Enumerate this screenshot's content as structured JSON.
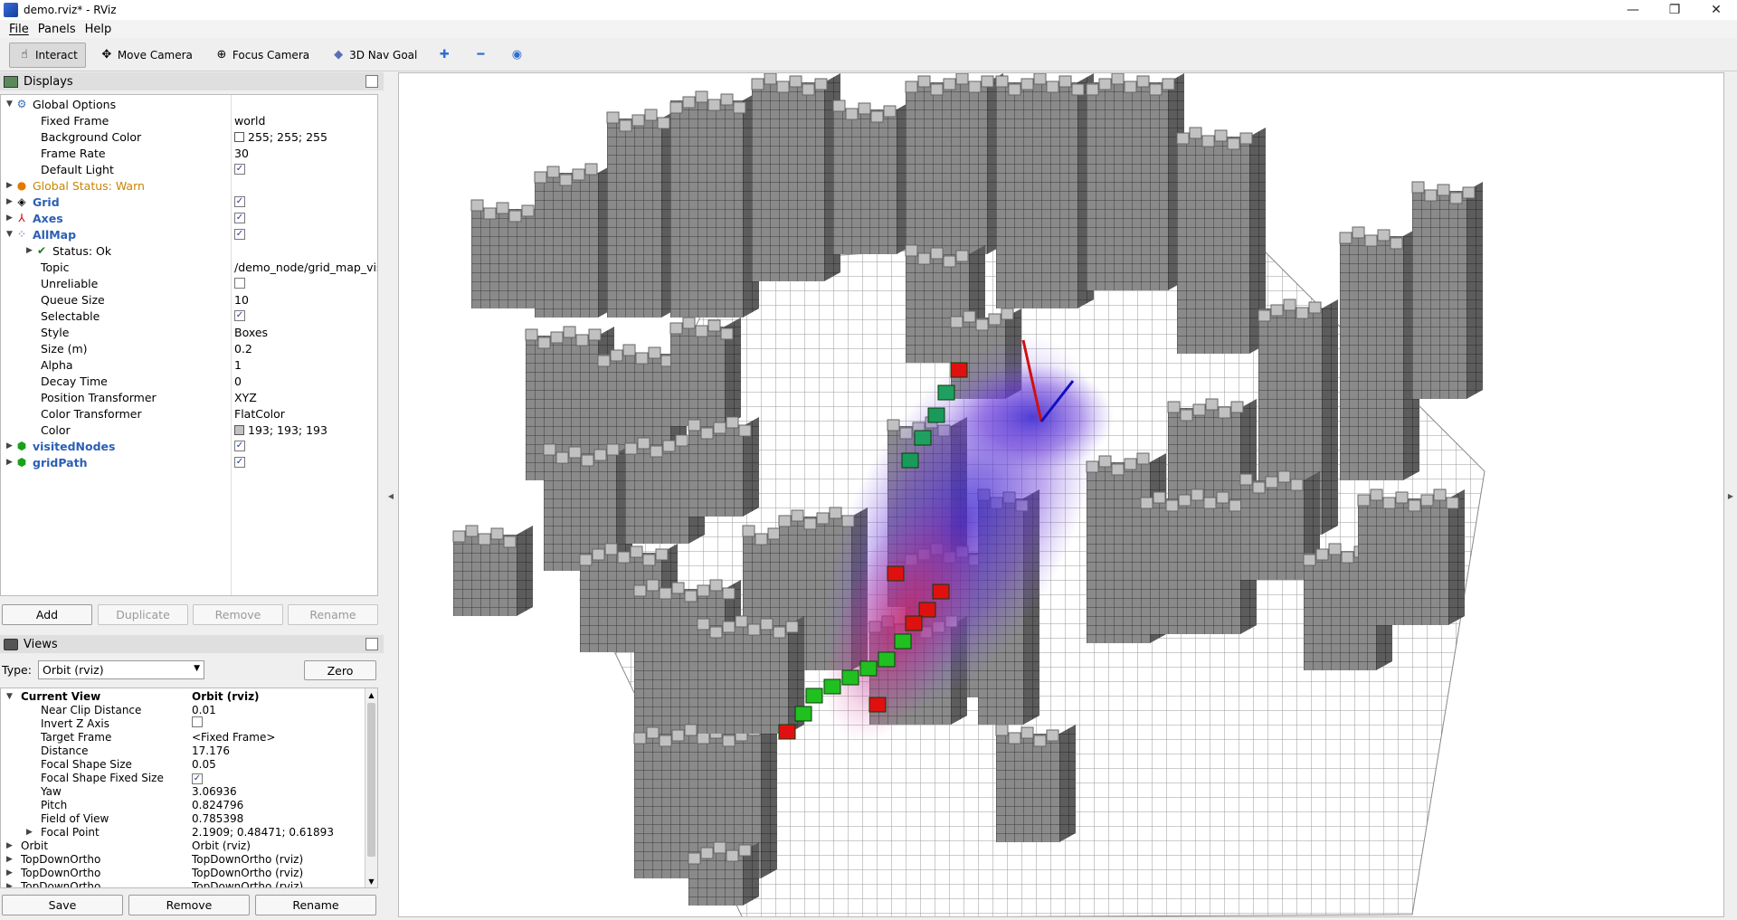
{
  "window": {
    "title": "demo.rviz* - RViz",
    "minimize": "—",
    "maximize": "❐",
    "close": "✕"
  },
  "menu": [
    "File",
    "Panels",
    "Help"
  ],
  "toolbar": {
    "interact": "Interact",
    "move_camera": "Move Camera",
    "focus_camera": "Focus Camera",
    "nav_goal": "3D Nav Goal"
  },
  "displays": {
    "header": "Displays",
    "rows": [
      {
        "key": "Global Options",
        "value": ""
      },
      {
        "key": "Fixed Frame",
        "value": "world"
      },
      {
        "key": "Background Color",
        "value": "255; 255; 255"
      },
      {
        "key": "Frame Rate",
        "value": "30"
      },
      {
        "key": "Default Light",
        "value": ""
      },
      {
        "key": "Global Status: Warn",
        "value": ""
      },
      {
        "key": "Grid",
        "value": ""
      },
      {
        "key": "Axes",
        "value": ""
      },
      {
        "key": "AllMap",
        "value": ""
      },
      {
        "key": "Status: Ok",
        "value": ""
      },
      {
        "key": "Topic",
        "value": "/demo_node/grid_map_vis"
      },
      {
        "key": "Unreliable",
        "value": ""
      },
      {
        "key": "Queue Size",
        "value": "10"
      },
      {
        "key": "Selectable",
        "value": ""
      },
      {
        "key": "Style",
        "value": "Boxes"
      },
      {
        "key": "Size (m)",
        "value": "0.2"
      },
      {
        "key": "Alpha",
        "value": "1"
      },
      {
        "key": "Decay Time",
        "value": "0"
      },
      {
        "key": "Position Transformer",
        "value": "XYZ"
      },
      {
        "key": "Color Transformer",
        "value": "FlatColor"
      },
      {
        "key": "Color",
        "value": "193; 193; 193"
      },
      {
        "key": "visitedNodes",
        "value": ""
      },
      {
        "key": "gridPath",
        "value": ""
      }
    ],
    "buttons": {
      "add": "Add",
      "duplicate": "Duplicate",
      "remove": "Remove",
      "rename": "Rename"
    }
  },
  "views": {
    "header": "Views",
    "type_label": "Type:",
    "type_value": "Orbit (rviz)",
    "zero": "Zero",
    "rows": [
      {
        "key": "Current View",
        "value": "Orbit (rviz)"
      },
      {
        "key": "Near Clip Distance",
        "value": "0.01"
      },
      {
        "key": "Invert Z Axis",
        "value": ""
      },
      {
        "key": "Target Frame",
        "value": "<Fixed Frame>"
      },
      {
        "key": "Distance",
        "value": "17.176"
      },
      {
        "key": "Focal Shape Size",
        "value": "0.05"
      },
      {
        "key": "Focal Shape Fixed Size",
        "value": ""
      },
      {
        "key": "Yaw",
        "value": "3.06936"
      },
      {
        "key": "Pitch",
        "value": "0.824796"
      },
      {
        "key": "Field of View",
        "value": "0.785398"
      },
      {
        "key": "Focal Point",
        "value": "2.1909; 0.48471; 0.61893"
      },
      {
        "key": "Orbit",
        "value": "Orbit (rviz)"
      },
      {
        "key": "TopDownOrtho",
        "value": "TopDownOrtho (rviz)"
      },
      {
        "key": "TopDownOrtho",
        "value": "TopDownOrtho (rviz)"
      },
      {
        "key": "TopDownOrtho",
        "value": "TopDownOrtho (rviz)"
      }
    ],
    "buttons": {
      "save": "Save",
      "remove": "Remove",
      "rename": "Rename"
    }
  },
  "colors": {
    "background_swatch": "#ffffff",
    "map_swatch": "#c1c1c1",
    "warn": "#c98400",
    "link_blue": "#2b5fb5"
  }
}
